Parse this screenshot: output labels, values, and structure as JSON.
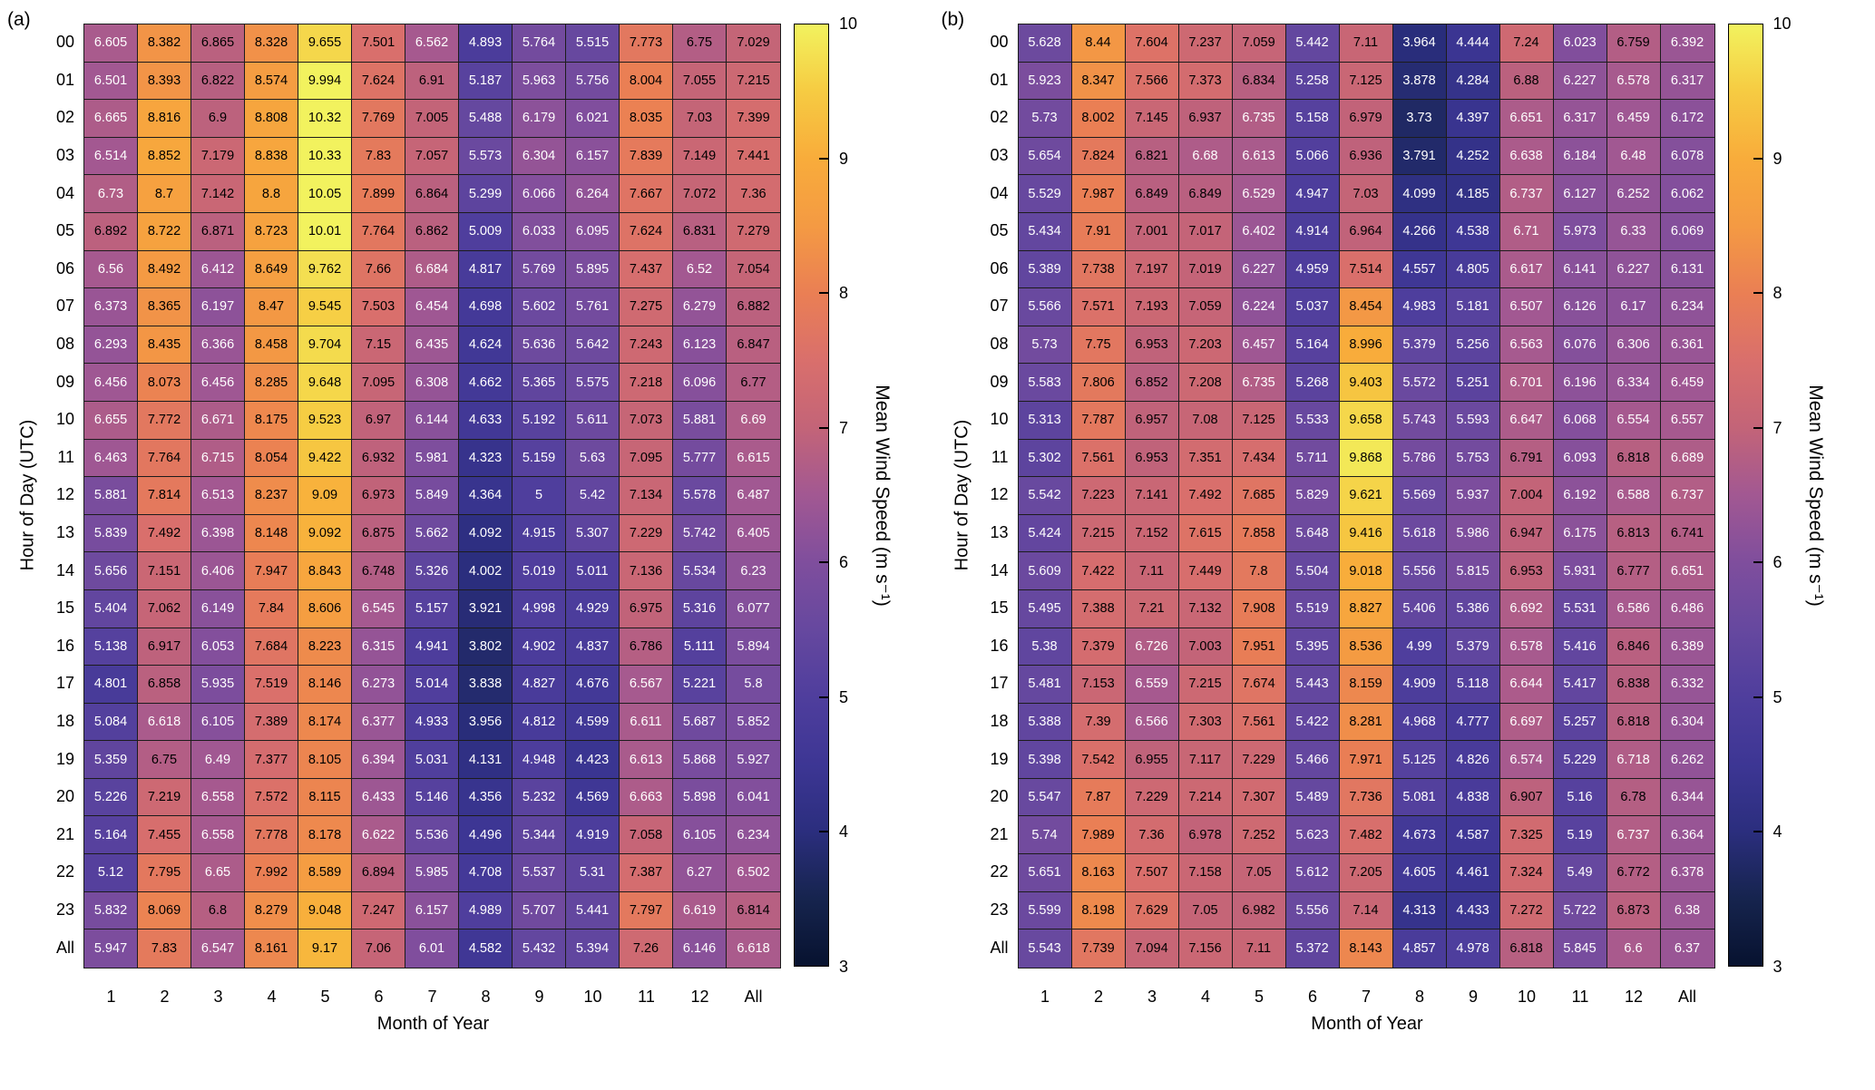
{
  "chart_data": [
    {
      "type": "heatmap",
      "panel_label": "(a)",
      "xlabel": "Month of Year",
      "ylabel": "Hour of Day (UTC)",
      "x_categories": [
        "1",
        "2",
        "3",
        "4",
        "5",
        "6",
        "7",
        "8",
        "9",
        "10",
        "11",
        "12",
        "All"
      ],
      "y_categories": [
        "00",
        "01",
        "02",
        "03",
        "04",
        "05",
        "06",
        "07",
        "08",
        "09",
        "10",
        "11",
        "12",
        "13",
        "14",
        "15",
        "16",
        "17",
        "18",
        "19",
        "20",
        "21",
        "22",
        "23",
        "All"
      ],
      "values": [
        [
          6.605,
          8.382,
          6.865,
          8.328,
          9.655,
          7.501,
          6.562,
          4.893,
          5.764,
          5.515,
          7.773,
          6.75,
          7.029
        ],
        [
          6.501,
          8.393,
          6.822,
          8.574,
          9.994,
          7.624,
          6.91,
          5.187,
          5.963,
          5.756,
          8.004,
          7.055,
          7.215
        ],
        [
          6.665,
          8.816,
          6.9,
          8.808,
          10.32,
          7.769,
          7.005,
          5.488,
          6.179,
          6.021,
          8.035,
          7.03,
          7.399
        ],
        [
          6.514,
          8.852,
          7.179,
          8.838,
          10.33,
          7.83,
          7.057,
          5.573,
          6.304,
          6.157,
          7.839,
          7.149,
          7.441
        ],
        [
          6.73,
          8.7,
          7.142,
          8.8,
          10.05,
          7.899,
          6.864,
          5.299,
          6.066,
          6.264,
          7.667,
          7.072,
          7.36
        ],
        [
          6.892,
          8.722,
          6.871,
          8.723,
          10.01,
          7.764,
          6.862,
          5.009,
          6.033,
          6.095,
          7.624,
          6.831,
          7.279
        ],
        [
          6.56,
          8.492,
          6.412,
          8.649,
          9.762,
          7.66,
          6.684,
          4.817,
          5.769,
          5.895,
          7.437,
          6.52,
          7.054
        ],
        [
          6.373,
          8.365,
          6.197,
          8.47,
          9.545,
          7.503,
          6.454,
          4.698,
          5.602,
          5.761,
          7.275,
          6.279,
          6.882
        ],
        [
          6.293,
          8.435,
          6.366,
          8.458,
          9.704,
          7.15,
          6.435,
          4.624,
          5.636,
          5.642,
          7.243,
          6.123,
          6.847
        ],
        [
          6.456,
          8.073,
          6.456,
          8.285,
          9.648,
          7.095,
          6.308,
          4.662,
          5.365,
          5.575,
          7.218,
          6.096,
          6.77
        ],
        [
          6.655,
          7.772,
          6.671,
          8.175,
          9.523,
          6.97,
          6.144,
          4.633,
          5.192,
          5.611,
          7.073,
          5.881,
          6.69
        ],
        [
          6.463,
          7.764,
          6.715,
          8.054,
          9.422,
          6.932,
          5.981,
          4.323,
          5.159,
          5.63,
          7.095,
          5.777,
          6.615
        ],
        [
          5.881,
          7.814,
          6.513,
          8.237,
          9.09,
          6.973,
          5.849,
          4.364,
          5,
          5.42,
          7.134,
          5.578,
          6.487
        ],
        [
          5.839,
          7.492,
          6.398,
          8.148,
          9.092,
          6.875,
          5.662,
          4.092,
          4.915,
          5.307,
          7.229,
          5.742,
          6.405
        ],
        [
          5.656,
          7.151,
          6.406,
          7.947,
          8.843,
          6.748,
          5.326,
          4.002,
          5.019,
          5.011,
          7.136,
          5.534,
          6.23
        ],
        [
          5.404,
          7.062,
          6.149,
          7.84,
          8.606,
          6.545,
          5.157,
          3.921,
          4.998,
          4.929,
          6.975,
          5.316,
          6.077
        ],
        [
          5.138,
          6.917,
          6.053,
          7.684,
          8.223,
          6.315,
          4.941,
          3.802,
          4.902,
          4.837,
          6.786,
          5.111,
          5.894
        ],
        [
          4.801,
          6.858,
          5.935,
          7.519,
          8.146,
          6.273,
          5.014,
          3.838,
          4.827,
          4.676,
          6.567,
          5.221,
          5.8
        ],
        [
          5.084,
          6.618,
          6.105,
          7.389,
          8.174,
          6.377,
          4.933,
          3.956,
          4.812,
          4.599,
          6.611,
          5.687,
          5.852
        ],
        [
          5.359,
          6.75,
          6.49,
          7.377,
          8.105,
          6.394,
          5.031,
          4.131,
          4.948,
          4.423,
          6.613,
          5.868,
          5.927
        ],
        [
          5.226,
          7.219,
          6.558,
          7.572,
          8.115,
          6.433,
          5.146,
          4.356,
          5.232,
          4.569,
          6.663,
          5.898,
          6.041
        ],
        [
          5.164,
          7.455,
          6.558,
          7.778,
          8.178,
          6.622,
          5.536,
          4.496,
          5.344,
          4.919,
          7.058,
          6.105,
          6.234
        ],
        [
          5.12,
          7.795,
          6.65,
          7.992,
          8.589,
          6.894,
          5.985,
          4.708,
          5.537,
          5.31,
          7.387,
          6.27,
          6.502
        ],
        [
          5.832,
          8.069,
          6.8,
          8.279,
          9.048,
          7.247,
          6.157,
          4.989,
          5.707,
          5.441,
          7.797,
          6.619,
          6.814
        ],
        [
          5.947,
          7.83,
          6.547,
          8.161,
          9.17,
          7.06,
          6.01,
          4.582,
          5.432,
          5.394,
          7.26,
          6.146,
          6.618
        ]
      ],
      "colorbar": {
        "label": "Mean Wind Speed (m s⁻¹)",
        "ticks": [
          10,
          9,
          8,
          7,
          6,
          5,
          4,
          3
        ],
        "range": [
          3,
          10
        ]
      }
    },
    {
      "type": "heatmap",
      "panel_label": "(b)",
      "xlabel": "Month of Year",
      "ylabel": "Hour of Day (UTC)",
      "x_categories": [
        "1",
        "2",
        "3",
        "4",
        "5",
        "6",
        "7",
        "8",
        "9",
        "10",
        "11",
        "12",
        "All"
      ],
      "y_categories": [
        "00",
        "01",
        "02",
        "03",
        "04",
        "05",
        "06",
        "07",
        "08",
        "09",
        "10",
        "11",
        "12",
        "13",
        "14",
        "15",
        "16",
        "17",
        "18",
        "19",
        "20",
        "21",
        "22",
        "23",
        "All"
      ],
      "values": [
        [
          5.628,
          8.44,
          7.604,
          7.237,
          7.059,
          5.442,
          7.11,
          3.964,
          4.444,
          7.24,
          6.023,
          6.759,
          6.392
        ],
        [
          5.923,
          8.347,
          7.566,
          7.373,
          6.834,
          5.258,
          7.125,
          3.878,
          4.284,
          6.88,
          6.227,
          6.578,
          6.317
        ],
        [
          5.73,
          8.002,
          7.145,
          6.937,
          6.735,
          5.158,
          6.979,
          3.73,
          4.397,
          6.651,
          6.317,
          6.459,
          6.172
        ],
        [
          5.654,
          7.824,
          6.821,
          6.68,
          6.613,
          5.066,
          6.936,
          3.791,
          4.252,
          6.638,
          6.184,
          6.48,
          6.078
        ],
        [
          5.529,
          7.987,
          6.849,
          6.849,
          6.529,
          4.947,
          7.03,
          4.099,
          4.185,
          6.737,
          6.127,
          6.252,
          6.062
        ],
        [
          5.434,
          7.91,
          7.001,
          7.017,
          6.402,
          4.914,
          6.964,
          4.266,
          4.538,
          6.71,
          5.973,
          6.33,
          6.069
        ],
        [
          5.389,
          7.738,
          7.197,
          7.019,
          6.227,
          4.959,
          7.514,
          4.557,
          4.805,
          6.617,
          6.141,
          6.227,
          6.131
        ],
        [
          5.566,
          7.571,
          7.193,
          7.059,
          6.224,
          5.037,
          8.454,
          4.983,
          5.181,
          6.507,
          6.126,
          6.17,
          6.234
        ],
        [
          5.73,
          7.75,
          6.953,
          7.203,
          6.457,
          5.164,
          8.996,
          5.379,
          5.256,
          6.563,
          6.076,
          6.306,
          6.361
        ],
        [
          5.583,
          7.806,
          6.852,
          7.208,
          6.735,
          5.268,
          9.403,
          5.572,
          5.251,
          6.701,
          6.196,
          6.334,
          6.459
        ],
        [
          5.313,
          7.787,
          6.957,
          7.08,
          7.125,
          5.533,
          9.658,
          5.743,
          5.593,
          6.647,
          6.068,
          6.554,
          6.557
        ],
        [
          5.302,
          7.561,
          6.953,
          7.351,
          7.434,
          5.711,
          9.868,
          5.786,
          5.753,
          6.791,
          6.093,
          6.818,
          6.689
        ],
        [
          5.542,
          7.223,
          7.141,
          7.492,
          7.685,
          5.829,
          9.621,
          5.569,
          5.937,
          7.004,
          6.192,
          6.588,
          6.737
        ],
        [
          5.424,
          7.215,
          7.152,
          7.615,
          7.858,
          5.648,
          9.416,
          5.618,
          5.986,
          6.947,
          6.175,
          6.813,
          6.741
        ],
        [
          5.609,
          7.422,
          7.11,
          7.449,
          7.8,
          5.504,
          9.018,
          5.556,
          5.815,
          6.953,
          5.931,
          6.777,
          6.651
        ],
        [
          5.495,
          7.388,
          7.21,
          7.132,
          7.908,
          5.519,
          8.827,
          5.406,
          5.386,
          6.692,
          5.531,
          6.586,
          6.486
        ],
        [
          5.38,
          7.379,
          6.726,
          7.003,
          7.951,
          5.395,
          8.536,
          4.99,
          5.379,
          6.578,
          5.416,
          6.846,
          6.389
        ],
        [
          5.481,
          7.153,
          6.559,
          7.215,
          7.674,
          5.443,
          8.159,
          4.909,
          5.118,
          6.644,
          5.417,
          6.838,
          6.332
        ],
        [
          5.388,
          7.39,
          6.566,
          7.303,
          7.561,
          5.422,
          8.281,
          4.968,
          4.777,
          6.697,
          5.257,
          6.818,
          6.304
        ],
        [
          5.398,
          7.542,
          6.955,
          7.117,
          7.229,
          5.466,
          7.971,
          5.125,
          4.826,
          6.574,
          5.229,
          6.718,
          6.262
        ],
        [
          5.547,
          7.87,
          7.229,
          7.214,
          7.307,
          5.489,
          7.736,
          5.081,
          4.838,
          6.907,
          5.16,
          6.78,
          6.344
        ],
        [
          5.74,
          7.989,
          7.36,
          6.978,
          7.252,
          5.623,
          7.482,
          4.673,
          4.587,
          7.325,
          5.19,
          6.737,
          6.364
        ],
        [
          5.651,
          8.163,
          7.507,
          7.158,
          7.05,
          5.612,
          7.205,
          4.605,
          4.461,
          7.324,
          5.49,
          6.772,
          6.378
        ],
        [
          5.599,
          8.198,
          7.629,
          7.05,
          6.982,
          5.556,
          7.14,
          4.313,
          4.433,
          7.272,
          5.722,
          6.873,
          6.38
        ],
        [
          5.543,
          7.739,
          7.094,
          7.156,
          7.11,
          5.372,
          8.143,
          4.857,
          4.978,
          6.818,
          5.845,
          6.6,
          6.37
        ]
      ],
      "colorbar": {
        "label": "Mean Wind Speed (m s⁻¹)",
        "ticks": [
          10,
          9,
          8,
          7,
          6,
          5,
          4,
          3
        ],
        "range": [
          3,
          10
        ]
      }
    }
  ],
  "style": {
    "colormap_stops": [
      {
        "value": 3.0,
        "color": "#07122F"
      },
      {
        "value": 3.5,
        "color": "#16244E"
      },
      {
        "value": 4.0,
        "color": "#2B2E7E"
      },
      {
        "value": 4.5,
        "color": "#3D3694"
      },
      {
        "value": 5.0,
        "color": "#4F3E9D"
      },
      {
        "value": 5.5,
        "color": "#66489F"
      },
      {
        "value": 6.0,
        "color": "#7F4E9D"
      },
      {
        "value": 6.5,
        "color": "#A25892"
      },
      {
        "value": 7.0,
        "color": "#C36478"
      },
      {
        "value": 7.5,
        "color": "#D96F6C"
      },
      {
        "value": 8.0,
        "color": "#EA7F54"
      },
      {
        "value": 8.5,
        "color": "#F49A43"
      },
      {
        "value": 9.0,
        "color": "#F8AC3B"
      },
      {
        "value": 9.5,
        "color": "#F6CB42"
      },
      {
        "value": 10.0,
        "color": "#F2F25E"
      }
    ],
    "cell_text_light": "#ffffff",
    "cell_text_dark": "#000000",
    "text_color_threshold": 6.74,
    "grid_line_color": "#1c1c1c"
  }
}
